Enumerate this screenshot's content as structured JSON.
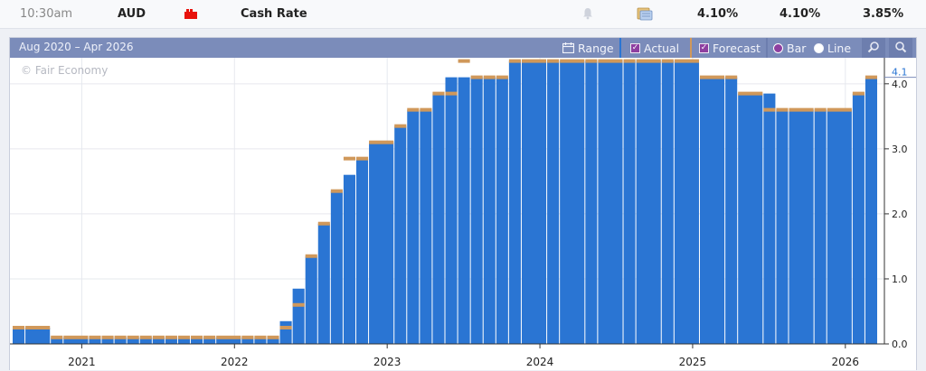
{
  "event_row": {
    "time": "10:30am",
    "currency": "AUD",
    "event": "Cash Rate",
    "actual": "4.10%",
    "forecast": "4.10%",
    "previous": "3.85%",
    "impact_color": "#e8120c",
    "icons": [
      "impact-folder-icon",
      "bell-icon",
      "detail-icon"
    ]
  },
  "toolbar": {
    "range_text": "Aug 2020 – Apr 2026",
    "range_label": "Range",
    "actual_label": "Actual",
    "forecast_label": "Forecast",
    "bar_label": "Bar",
    "line_label": "Line",
    "selected_style": "Bar",
    "actual_checked": true,
    "forecast_checked": true
  },
  "chart_data": {
    "type": "bar",
    "watermark": "© Fair Economy",
    "year_labels": [
      "2021",
      "2022",
      "2023",
      "2024",
      "2025",
      "2026"
    ],
    "y_ticks": [
      "0.0",
      "1.0",
      "2.0",
      "3.0",
      "4.0"
    ],
    "ylim": [
      0,
      4.4
    ],
    "current_value_label": "4.1",
    "grid": true,
    "colors": {
      "actual": "#2a75d3",
      "forecast": "#d0985a",
      "separator": "#7b8cba"
    },
    "series": [
      {
        "name": "Actual",
        "dates": [
          "2020-08",
          "2020-09",
          "2020-11",
          "2020-12",
          "2021-02",
          "2021-03",
          "2021-04",
          "2021-05",
          "2021-06",
          "2021-07",
          "2021-08",
          "2021-09",
          "2021-10",
          "2021-11",
          "2021-12",
          "2022-02",
          "2022-03",
          "2022-04",
          "2022-05",
          "2022-06",
          "2022-07",
          "2022-08",
          "2022-09",
          "2022-10",
          "2022-11",
          "2022-12",
          "2023-02",
          "2023-03",
          "2023-04",
          "2023-05",
          "2023-06",
          "2023-07",
          "2023-08",
          "2023-09",
          "2023-10",
          "2023-11",
          "2023-12",
          "2024-02",
          "2024-03",
          "2024-05",
          "2024-06",
          "2024-08",
          "2024-09",
          "2024-11",
          "2024-12",
          "2025-02",
          "2025-04",
          "2025-05",
          "2025-07",
          "2025-08",
          "2025-09",
          "2025-11",
          "2025-12",
          "2026-02",
          "2026-03"
        ],
        "values": [
          0.25,
          0.25,
          0.1,
          0.1,
          0.1,
          0.1,
          0.1,
          0.1,
          0.1,
          0.1,
          0.1,
          0.1,
          0.1,
          0.1,
          0.1,
          0.1,
          0.1,
          0.1,
          0.35,
          0.85,
          1.35,
          1.85,
          2.35,
          2.6,
          2.85,
          3.1,
          3.35,
          3.6,
          3.6,
          3.85,
          4.1,
          4.1,
          4.1,
          4.1,
          4.1,
          4.35,
          4.35,
          4.35,
          4.35,
          4.35,
          4.35,
          4.35,
          4.35,
          4.35,
          4.35,
          4.1,
          4.1,
          3.85,
          3.85,
          3.6,
          3.6,
          3.6,
          3.6,
          3.85,
          4.1
        ]
      },
      {
        "name": "Forecast",
        "values": [
          0.25,
          0.25,
          0.1,
          0.1,
          0.1,
          0.1,
          0.1,
          0.1,
          0.1,
          0.1,
          0.1,
          0.1,
          0.1,
          0.1,
          0.1,
          0.1,
          0.1,
          0.1,
          0.25,
          0.6,
          1.35,
          1.85,
          2.35,
          2.85,
          2.85,
          3.1,
          3.35,
          3.6,
          3.6,
          3.85,
          3.85,
          4.35,
          4.1,
          4.1,
          4.1,
          4.35,
          4.35,
          4.35,
          4.35,
          4.35,
          4.35,
          4.35,
          4.35,
          4.35,
          4.35,
          4.1,
          4.1,
          3.85,
          3.6,
          3.6,
          3.6,
          3.6,
          3.6,
          3.85,
          4.1
        ]
      }
    ]
  }
}
